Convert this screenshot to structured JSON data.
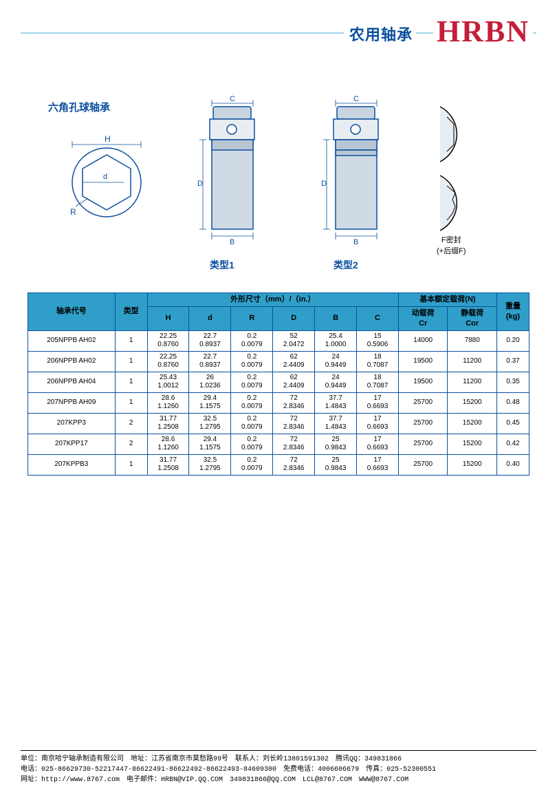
{
  "header": {
    "title": "农用轴承",
    "logo": "HRBN"
  },
  "diagrams": {
    "subtitle": "六角孔球轴承",
    "hex": {
      "H": "H",
      "R": "R",
      "d": "d"
    },
    "t1": {
      "C": "C",
      "B": "B",
      "D": "D",
      "label": "类型1"
    },
    "t2": {
      "C": "C",
      "B": "B",
      "D": "D",
      "label": "类型2"
    },
    "seal": {
      "line1": "F密封",
      "line2": "(+后缀F)"
    }
  },
  "table": {
    "h1": "轴承代号",
    "h2": "类型",
    "h3": "外形尺寸（mm）/（in.）",
    "h4": "基本额定载荷(N)",
    "h5": "重量\n(kg)",
    "sub": {
      "H": "H",
      "d": "d",
      "R": "R",
      "D": "D",
      "B": "B",
      "C": "C",
      "cr": "动载荷\nCr",
      "cor": "静载荷\nCor"
    },
    "rows": [
      {
        "code": "205NPPB AH02",
        "type": "1",
        "H": "22.25\n0.8760",
        "d": "22.7\n0.8937",
        "R": "0.2\n0.0079",
        "D": "52\n2.0472",
        "B": "25.4\n1.0000",
        "C": "15\n0.5906",
        "cr": "14000",
        "cor": "7880",
        "kg": "0.20"
      },
      {
        "code": "206NPPB AH02",
        "type": "1",
        "H": "22.25\n0.8760",
        "d": "22.7\n0.8937",
        "R": "0.2\n0.0079",
        "D": "62\n2.4409",
        "B": "24\n0.9449",
        "C": "18\n0.7087",
        "cr": "19500",
        "cor": "11200",
        "kg": "0.37"
      },
      {
        "code": "206NPPB AH04",
        "type": "1",
        "H": "25.43\n1.0012",
        "d": "26\n1.0236",
        "R": "0.2\n0.0079",
        "D": "62\n2.4409",
        "B": "24\n0.9449",
        "C": "18\n0.7087",
        "cr": "19500",
        "cor": "11200",
        "kg": "0.35"
      },
      {
        "code": "207NPPB AH09",
        "type": "1",
        "H": "28.6\n1.1260",
        "d": "29.4\n1.1575",
        "R": "0.2\n0.0079",
        "D": "72\n2.8346",
        "B": "37.7\n1.4843",
        "C": "17\n0.6693",
        "cr": "25700",
        "cor": "15200",
        "kg": "0.48"
      },
      {
        "code": "207KPP3",
        "type": "2",
        "H": "31.77\n1.2508",
        "d": "32.5\n1.2795",
        "R": "0.2\n0.0079",
        "D": "72\n2.8346",
        "B": "37.7\n1.4843",
        "C": "17\n0.6693",
        "cr": "25700",
        "cor": "15200",
        "kg": "0.45"
      },
      {
        "code": "207KPP17",
        "type": "2",
        "H": "28.6\n1.1260",
        "d": "29.4\n1.1575",
        "R": "0.2\n0.0079",
        "D": "72\n2.8346",
        "B": "25\n0.9843",
        "C": "17\n0.6693",
        "cr": "25700",
        "cor": "15200",
        "kg": "0.42"
      },
      {
        "code": "207KPPB3",
        "type": "1",
        "H": "31.77\n1.2508",
        "d": "32.5\n1.2795",
        "R": "0.2\n0.0079",
        "D": "72\n2.8346",
        "B": "25\n0.9843",
        "C": "17\n0.6693",
        "cr": "25700",
        "cor": "15200",
        "kg": "0.40"
      }
    ]
  },
  "footer": {
    "l1": "单位：南京哈宁轴承制造有限公司　地址：江苏省南京市莫愁路99号　联系人：刘长岭13801591302　腾讯QQ：349831866",
    "l2": "电话：025-86629730-52217447-86622491-86622492-86622493-84609300　免费电话：4006606679　传真：025-52300551",
    "l3": "网址：http://www.8767.com　电子邮件：HRBN@VIP.QQ.COM　349831866@QQ.COM　LCL@8767.COM　WWW@8767.COM"
  },
  "style": {
    "accent": "#0b4f9e",
    "header_bg": "#2f9fc9",
    "logo_color": "#c41e3a",
    "line": "#9fd4e8"
  }
}
